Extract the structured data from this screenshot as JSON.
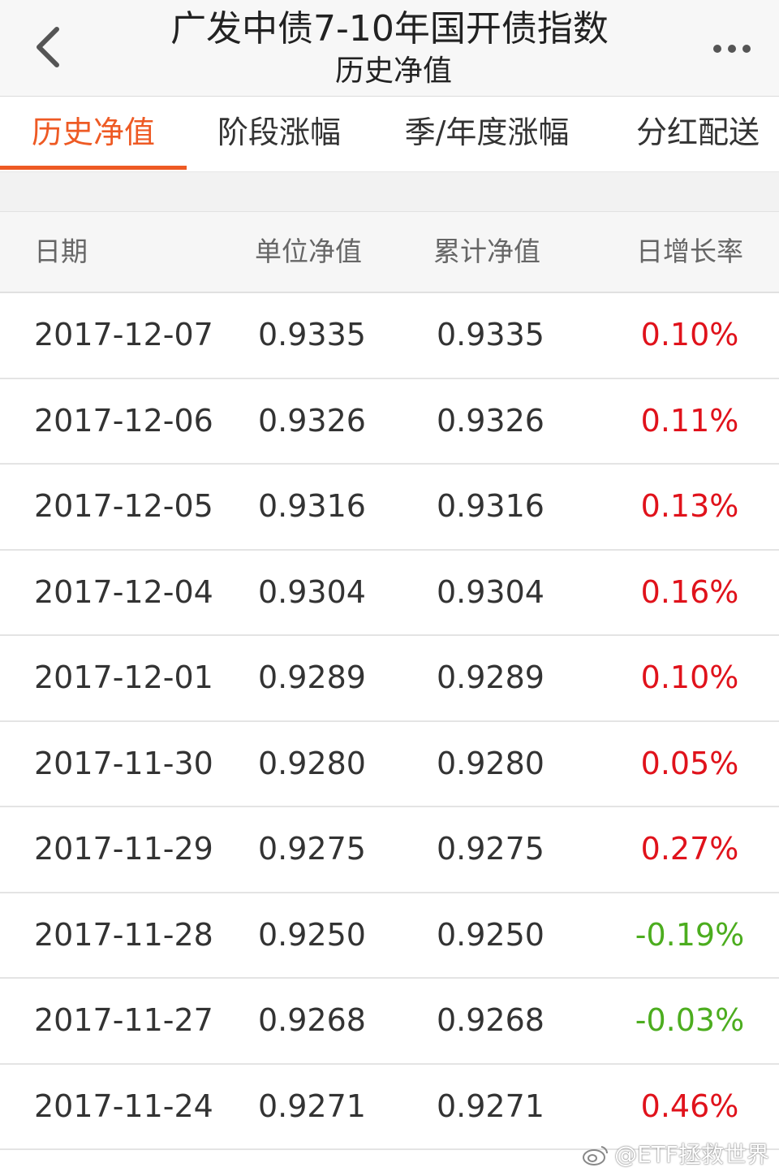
{
  "header": {
    "back_icon": "chevron-left-icon",
    "title": "广发中债7-10年国开债指数",
    "subtitle": "历史净值",
    "more_icon": "more-horizontal-icon"
  },
  "tabs": [
    {
      "label": "历史净值",
      "active": true
    },
    {
      "label": "阶段涨幅",
      "active": false
    },
    {
      "label": "季/年度涨幅",
      "active": false
    },
    {
      "label": "分红配送",
      "active": false
    }
  ],
  "colors": {
    "accent": "#ee5a24",
    "rise": "#e0121b",
    "fall": "#4cad1f"
  },
  "table": {
    "columns": [
      "日期",
      "单位净值",
      "累计净值",
      "日增长率"
    ],
    "rows": [
      {
        "date": "2017-12-07",
        "unit_nav": "0.9335",
        "acc_nav": "0.9335",
        "rate": "0.10%",
        "trend": "up"
      },
      {
        "date": "2017-12-06",
        "unit_nav": "0.9326",
        "acc_nav": "0.9326",
        "rate": "0.11%",
        "trend": "up"
      },
      {
        "date": "2017-12-05",
        "unit_nav": "0.9316",
        "acc_nav": "0.9316",
        "rate": "0.13%",
        "trend": "up"
      },
      {
        "date": "2017-12-04",
        "unit_nav": "0.9304",
        "acc_nav": "0.9304",
        "rate": "0.16%",
        "trend": "up"
      },
      {
        "date": "2017-12-01",
        "unit_nav": "0.9289",
        "acc_nav": "0.9289",
        "rate": "0.10%",
        "trend": "up"
      },
      {
        "date": "2017-11-30",
        "unit_nav": "0.9280",
        "acc_nav": "0.9280",
        "rate": "0.05%",
        "trend": "up"
      },
      {
        "date": "2017-11-29",
        "unit_nav": "0.9275",
        "acc_nav": "0.9275",
        "rate": "0.27%",
        "trend": "up"
      },
      {
        "date": "2017-11-28",
        "unit_nav": "0.9250",
        "acc_nav": "0.9250",
        "rate": "-0.19%",
        "trend": "down"
      },
      {
        "date": "2017-11-27",
        "unit_nav": "0.9268",
        "acc_nav": "0.9268",
        "rate": "-0.03%",
        "trend": "down"
      },
      {
        "date": "2017-11-24",
        "unit_nav": "0.9271",
        "acc_nav": "0.9271",
        "rate": "0.46%",
        "trend": "up"
      }
    ]
  },
  "watermark": {
    "icon": "weibo-logo-icon",
    "text": "@ETF拯救世界"
  }
}
